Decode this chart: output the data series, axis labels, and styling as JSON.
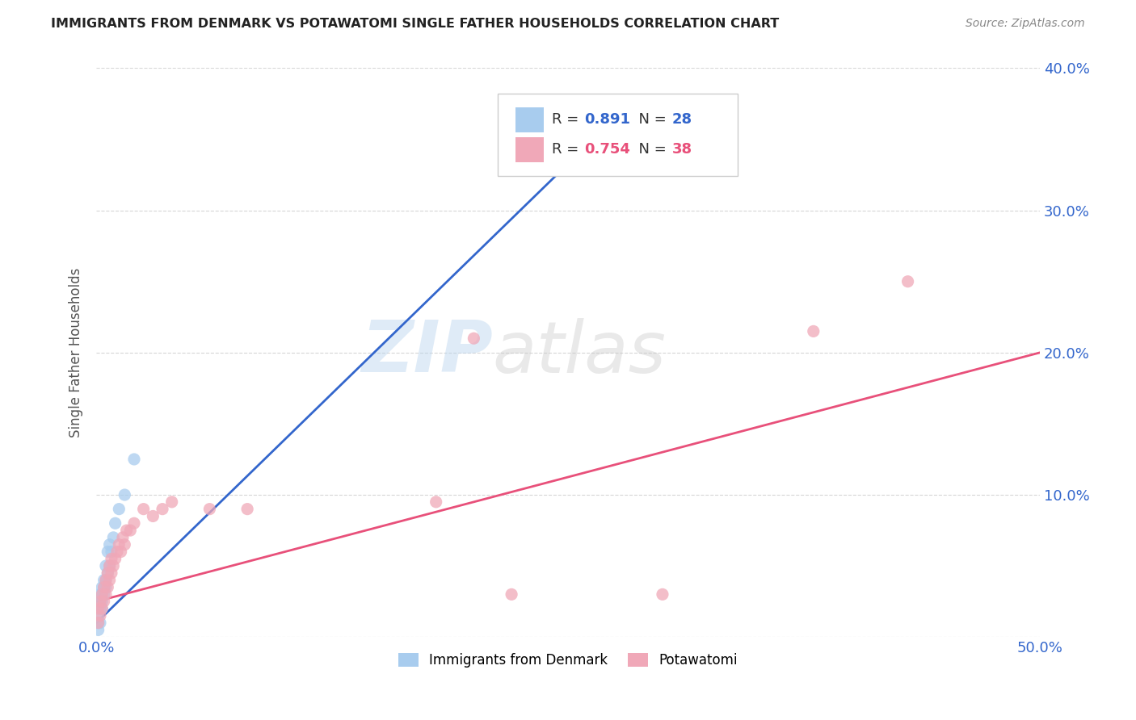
{
  "title": "IMMIGRANTS FROM DENMARK VS POTAWATOMI SINGLE FATHER HOUSEHOLDS CORRELATION CHART",
  "source": "Source: ZipAtlas.com",
  "ylabel_label": "Single Father Households",
  "xlim": [
    0.0,
    0.5
  ],
  "ylim": [
    0.0,
    0.4
  ],
  "xticks": [
    0.0,
    0.1,
    0.2,
    0.3,
    0.4,
    0.5
  ],
  "yticks": [
    0.0,
    0.1,
    0.2,
    0.3,
    0.4
  ],
  "xtick_labels": [
    "0.0%",
    "",
    "",
    "",
    "",
    "50.0%"
  ],
  "ytick_labels_right": [
    "",
    "10.0%",
    "20.0%",
    "30.0%",
    "40.0%"
  ],
  "blue_color": "#A8CCEE",
  "pink_color": "#F0A8B8",
  "blue_line_color": "#3366CC",
  "pink_line_color": "#E8507A",
  "r_blue": 0.891,
  "n_blue": 28,
  "r_pink": 0.754,
  "n_pink": 38,
  "legend_label_blue": "Immigrants from Denmark",
  "legend_label_pink": "Potawatomi",
  "watermark_zip": "ZIP",
  "watermark_atlas": "atlas",
  "blue_scatter_x": [
    0.001,
    0.001,
    0.001,
    0.002,
    0.002,
    0.002,
    0.002,
    0.003,
    0.003,
    0.003,
    0.003,
    0.004,
    0.004,
    0.004,
    0.005,
    0.005,
    0.005,
    0.006,
    0.006,
    0.007,
    0.007,
    0.008,
    0.009,
    0.01,
    0.012,
    0.015,
    0.02,
    0.3
  ],
  "blue_scatter_y": [
    0.005,
    0.01,
    0.015,
    0.01,
    0.02,
    0.025,
    0.03,
    0.02,
    0.025,
    0.03,
    0.035,
    0.03,
    0.035,
    0.04,
    0.035,
    0.04,
    0.05,
    0.045,
    0.06,
    0.05,
    0.065,
    0.06,
    0.07,
    0.08,
    0.09,
    0.1,
    0.125,
    0.375
  ],
  "pink_scatter_x": [
    0.001,
    0.001,
    0.002,
    0.002,
    0.003,
    0.003,
    0.004,
    0.004,
    0.005,
    0.005,
    0.006,
    0.006,
    0.007,
    0.007,
    0.008,
    0.008,
    0.009,
    0.01,
    0.011,
    0.012,
    0.013,
    0.014,
    0.015,
    0.016,
    0.018,
    0.02,
    0.025,
    0.03,
    0.035,
    0.04,
    0.06,
    0.08,
    0.18,
    0.2,
    0.22,
    0.3,
    0.38,
    0.43
  ],
  "pink_scatter_y": [
    0.01,
    0.02,
    0.015,
    0.025,
    0.02,
    0.03,
    0.025,
    0.035,
    0.03,
    0.04,
    0.035,
    0.045,
    0.04,
    0.05,
    0.045,
    0.055,
    0.05,
    0.055,
    0.06,
    0.065,
    0.06,
    0.07,
    0.065,
    0.075,
    0.075,
    0.08,
    0.09,
    0.085,
    0.09,
    0.095,
    0.09,
    0.09,
    0.095,
    0.21,
    0.03,
    0.03,
    0.215,
    0.25
  ],
  "blue_trend_x": [
    0.0,
    0.285
  ],
  "blue_trend_y": [
    0.01,
    0.378
  ],
  "pink_trend_x": [
    0.0,
    0.5
  ],
  "pink_trend_y": [
    0.025,
    0.2
  ]
}
